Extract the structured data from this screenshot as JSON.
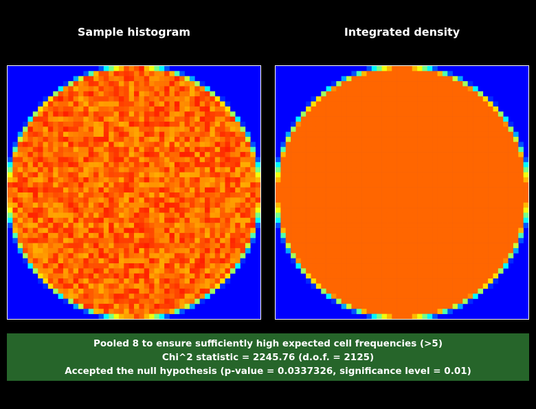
{
  "panels": [
    {
      "title": "Sample histogram"
    },
    {
      "title": "Integrated density"
    }
  ],
  "result": {
    "lines": [
      "Pooled 8 to ensure sufficiently high expected cell frequencies (>5)",
      "Chi^2 statistic = 2245.76 (d.o.f. = 2125)",
      "Accepted the null hypothesis (p-value = 0.0337326, significance level = 0.01)"
    ]
  }
}
